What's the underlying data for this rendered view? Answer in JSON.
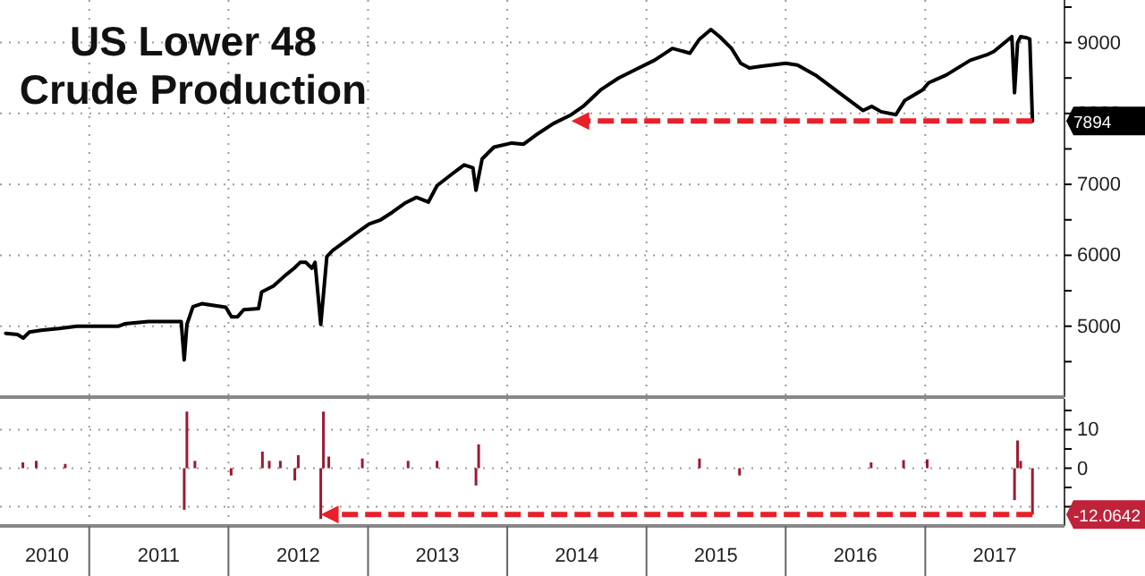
{
  "chart_data": [
    {
      "type": "line",
      "title": "US Lower 48 Crude Production",
      "color": "#000000",
      "line_style": "solid",
      "grid": true,
      "tick_labels": "y",
      "xlim": [
        "2010-05-12",
        "2018-01-01"
      ],
      "xticks": [
        {
          "value": "2011-01-01",
          "label": null
        },
        {
          "value": "2012-01-01",
          "label": null
        },
        {
          "value": "2013-01-01",
          "label": null
        },
        {
          "value": "2014-01-01",
          "label": null
        },
        {
          "value": "2015-01-01",
          "label": null
        },
        {
          "value": "2016-01-01",
          "label": null
        },
        {
          "value": "2017-01-01",
          "label": null
        }
      ],
      "ylim": [
        4000,
        9600
      ],
      "yticks": [
        {
          "value": 4500,
          "label": null
        },
        5000,
        {
          "value": 5500,
          "label": null
        },
        6000,
        {
          "value": 6500,
          "label": null
        },
        7000,
        {
          "value": 7500,
          "label": null
        },
        8000,
        {
          "value": 8500,
          "label": null
        },
        9000,
        {
          "value": 9500,
          "label": null
        }
      ],
      "x": [
        "2010-05-27",
        "2010-06-27",
        "2010-07-12",
        "2010-07-28",
        "2010-08-28",
        "2010-10-14",
        "2010-11-30",
        "2011-03-19",
        "2011-04-04",
        "2011-06-05",
        "2011-07-22",
        "2011-08-22",
        "2011-08-30",
        "2011-09-07",
        "2011-09-14",
        "2011-09-30",
        "2011-10-23",
        "2011-12-25",
        "2012-01-09",
        "2012-01-25",
        "2012-02-10",
        "2012-03-20",
        "2012-03-28",
        "2012-04-28",
        "2012-05-29",
        "2012-06-21",
        "2012-07-07",
        "2012-07-22",
        "2012-08-07",
        "2012-08-15",
        "2012-08-30",
        "2012-09-15",
        "2012-09-30",
        "2012-11-01",
        "2012-12-02",
        "2013-01-04",
        "2013-02-03",
        "2013-03-06",
        "2013-04-07",
        "2013-05-08",
        "2013-06-08",
        "2013-07-01",
        "2013-08-10",
        "2013-09-10",
        "2013-10-03",
        "2013-10-11",
        "2013-10-27",
        "2013-11-27",
        "2014-01-13",
        "2014-02-13",
        "2014-03-16",
        "2014-05-02",
        "2014-06-18",
        "2014-07-19",
        "2014-09-03",
        "2014-10-20",
        "2014-12-06",
        "2015-01-22",
        "2015-03-10",
        "2015-04-25",
        "2015-05-19",
        "2015-06-19",
        "2015-07-12",
        "2015-08-12",
        "2015-09-05",
        "2015-09-28",
        "2015-10-30",
        "2016-01-01",
        "2016-02-01",
        "2016-03-19",
        "2016-05-20",
        "2016-07-22",
        "2016-08-14",
        "2016-09-07",
        "2016-10-16",
        "2016-11-08",
        "2016-12-25",
        "2017-01-10",
        "2017-02-25",
        "2017-04-29",
        "2017-06-14",
        "2017-06-30",
        "2017-08-16",
        "2017-08-23",
        "2017-08-31",
        "2017-09-08",
        "2017-09-24",
        "2017-10-02",
        "2017-10-09"
      ],
      "values": [
        4900,
        4883,
        4833,
        4917,
        4942,
        4967,
        5000,
        5000,
        5033,
        5067,
        5067,
        5067,
        5067,
        4525,
        5025,
        5275,
        5317,
        5267,
        5133,
        5133,
        5233,
        5250,
        5483,
        5567,
        5717,
        5817,
        5900,
        5900,
        5817,
        5900,
        5025,
        5983,
        6067,
        6192,
        6317,
        6442,
        6500,
        6608,
        6733,
        6817,
        6750,
        6983,
        7150,
        7275,
        7233,
        6917,
        7358,
        7525,
        7583,
        7567,
        7692,
        7858,
        7983,
        8100,
        8333,
        8500,
        8625,
        8750,
        8917,
        8850,
        9042,
        9183,
        9083,
        8917,
        8708,
        8642,
        8667,
        8708,
        8683,
        8542,
        8292,
        8042,
        8100,
        8025,
        7983,
        8183,
        8333,
        8433,
        8542,
        8750,
        8833,
        8875,
        9083,
        8292,
        9000,
        9083,
        9067,
        9050,
        7894
      ],
      "annotations": [
        {
          "text": "7894",
          "x": "2017-10-09",
          "y": 7894
        }
      ]
    },
    {
      "type": "bar",
      "color": "#9b1b30",
      "grid": true,
      "xlim": [
        "2010-05-12",
        "2018-01-01"
      ],
      "xticks": [
        {
          "value": "2010-09-12",
          "label": "2010"
        },
        {
          "value": "2011-01-01",
          "label": null
        },
        {
          "value": "2011-07-02",
          "label": "2011"
        },
        {
          "value": "2012-01-01",
          "label": null
        },
        {
          "value": "2012-07-02",
          "label": "2012"
        },
        {
          "value": "2013-01-01",
          "label": null
        },
        {
          "value": "2013-07-02",
          "label": "2013"
        },
        {
          "value": "2014-01-01",
          "label": null
        },
        {
          "value": "2014-07-02",
          "label": "2014"
        },
        {
          "value": "2015-01-01",
          "label": null
        },
        {
          "value": "2015-07-02",
          "label": "2015"
        },
        {
          "value": "2016-01-01",
          "label": null
        },
        {
          "value": "2016-07-02",
          "label": "2016"
        },
        {
          "value": "2017-01-01",
          "label": null
        },
        {
          "value": "2017-07-02",
          "label": "2017"
        }
      ],
      "ylim": [
        -15,
        18
      ],
      "yticks": [
        {
          "value": -10,
          "label": null
        },
        {
          "value": -5,
          "label": null
        },
        0,
        {
          "value": 5,
          "label": null
        },
        10,
        {
          "value": 15,
          "label": null
        }
      ],
      "x": [
        "2010-07-11",
        "2010-08-15",
        "2010-10-30",
        "2011-09-07",
        "2011-09-14",
        "2011-10-05",
        "2012-01-08",
        "2012-03-30",
        "2012-04-17",
        "2012-05-16",
        "2012-06-23",
        "2012-07-02",
        "2012-08-30",
        "2012-09-06",
        "2012-09-20",
        "2012-12-17",
        "2013-04-16",
        "2013-07-01",
        "2013-10-11",
        "2013-10-18",
        "2015-05-20",
        "2015-09-02",
        "2016-08-12",
        "2016-11-05",
        "2017-01-06",
        "2017-08-23",
        "2017-08-31",
        "2017-09-08",
        "2017-10-09"
      ],
      "values": [
        1.5,
        1.9,
        1.1,
        -10.8,
        14.7,
        1.9,
        -1.9,
        4.3,
        1.9,
        1.9,
        -3.2,
        3.4,
        -13.2,
        14.7,
        3,
        2.5,
        1.9,
        1.9,
        -4.5,
        6.2,
        2.5,
        -1.9,
        1.5,
        2.1,
        2.3,
        -8.3,
        7.2,
        1.9,
        -12.0642
      ],
      "annotations": [
        {
          "text": "-12.0642",
          "x": "2017-10-09",
          "y": -12.0642
        }
      ]
    }
  ]
}
